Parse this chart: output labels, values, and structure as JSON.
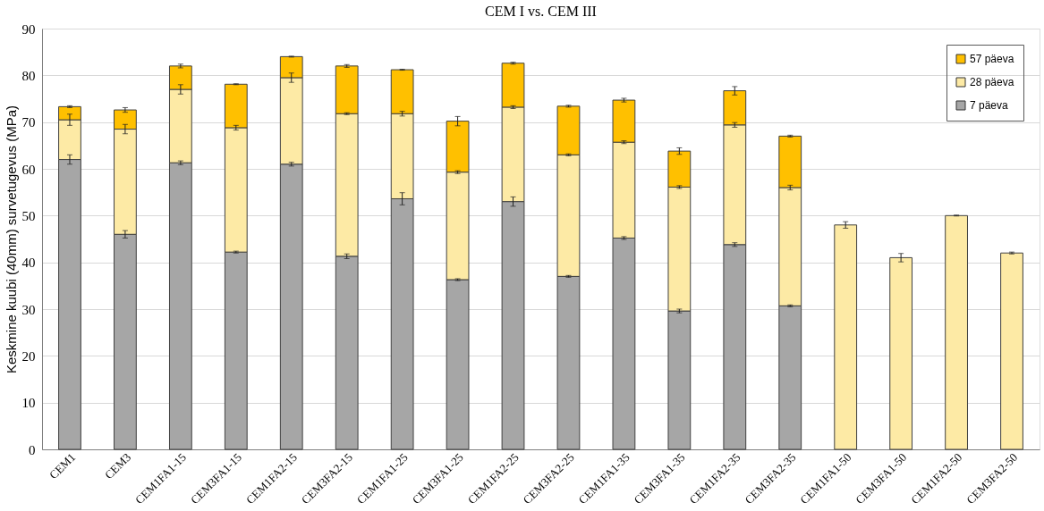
{
  "chart_data": {
    "type": "bar",
    "title": "CEM I vs. CEM III",
    "ylabel": "Keskmine kuubi (40mm) survetugevus (MPa)",
    "categories": [
      "CEM1",
      "CEM3",
      "CEM1FA1-15",
      "CEM3FA1-15",
      "CEM1FA2-15",
      "CEM3FA2-15",
      "CEM1FA1-25",
      "CEM3FA1-25",
      "CEM1FA2-25",
      "CEM3FA2-25",
      "CEM1FA1-35",
      "CEM3FA1-35",
      "CEM1FA2-35",
      "CEM3FA2-35",
      "CEM1FA1-50",
      "CEM3FA1-50",
      "CEM1FA2-50",
      "CEM3FA2-50"
    ],
    "stacked": true,
    "series": [
      {
        "name": "7 päeva",
        "color": "#a6a6a6",
        "values": [
          62,
          46,
          61.3,
          42.2,
          61,
          41.3,
          53.6,
          36.3,
          53,
          37,
          45.2,
          29.6,
          43.8,
          30.7,
          null,
          null,
          null,
          null
        ],
        "errors": [
          1,
          0.8,
          0.4,
          0.2,
          0.4,
          0.5,
          1.3,
          0.2,
          1,
          0.2,
          0.3,
          0.4,
          0.4,
          0.2,
          null,
          null,
          null,
          null
        ]
      },
      {
        "name": "28 päeva",
        "color": "#fdeaa5",
        "values": [
          8.5,
          22.5,
          15.7,
          26.6,
          18.5,
          30.5,
          18.2,
          23,
          20.2,
          26,
          20.5,
          26.5,
          25.6,
          25.3,
          48,
          41,
          50,
          42
        ],
        "errors": [
          1.2,
          1,
          1,
          0.5,
          1,
          0.2,
          0.5,
          0.3,
          0.3,
          0.2,
          0.3,
          0.3,
          0.5,
          0.5,
          0.7,
          0.9,
          0.1,
          0.2
        ]
      },
      {
        "name": "57 päeva",
        "color": "#ffc000",
        "values": [
          2.8,
          4.1,
          5,
          9.3,
          4.5,
          10.2,
          9.4,
          10.9,
          9.4,
          10.4,
          9,
          7.7,
          7.3,
          11,
          null,
          null,
          null,
          null
        ],
        "errors": [
          0.2,
          0.5,
          0.4,
          0.1,
          0.1,
          0.3,
          0.1,
          1,
          0.2,
          0.2,
          0.4,
          0.7,
          0.9,
          0.2,
          null,
          null,
          null,
          null
        ]
      }
    ],
    "ylim": [
      0,
      90
    ],
    "yticks": [
      0,
      10,
      20,
      30,
      40,
      50,
      60,
      70,
      80,
      90
    ],
    "grid": "y",
    "legend": "top right"
  }
}
